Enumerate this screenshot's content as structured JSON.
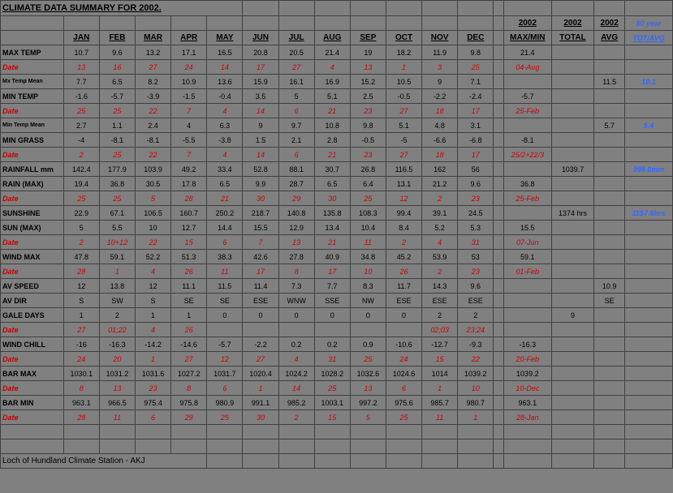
{
  "title": "CLIMATE DATA SUMMARY FOR 2002.",
  "columns": [
    "JAN",
    "FEB",
    "MAR",
    "APR",
    "MAY",
    "JUN",
    "JUL",
    "AUG",
    "SEP",
    "OCT",
    "NOV",
    "DEC"
  ],
  "summary_headers": {
    "maxmin": "2002 MAX/MIN",
    "total": "2002 TOTAL",
    "avg": "2002 AVG",
    "fifty": "50 year TOT/AVG"
  },
  "rows": [
    {
      "label": "MAX TEMP",
      "cls": "rowlabel",
      "vals": [
        "10.7",
        "9.6",
        "13.2",
        "17.1",
        "16.5",
        "20.8",
        "20.5",
        "21.4",
        "19",
        "18.2",
        "11.9",
        "9.8"
      ],
      "s1": "21.4",
      "s2": "",
      "s3": "",
      "s4": ""
    },
    {
      "label": "Date",
      "cls": "date-label",
      "vcls": "red",
      "vals": [
        "13",
        "16",
        "27",
        "24",
        "14",
        "17",
        "27",
        "4",
        "13",
        "1",
        "3",
        "25"
      ],
      "s1": "04-Aug",
      "s1cls": "red",
      "s2": "",
      "s3": "",
      "s4": ""
    },
    {
      "label": "Mx Temp Mean",
      "cls": "rowlabel-sm",
      "vals": [
        "7.7",
        "6.5",
        "8.2",
        "10.9",
        "13.6",
        "15.9",
        "16.1",
        "16.9",
        "15.2",
        "10.5",
        "9",
        "7.1"
      ],
      "s1": "",
      "s2": "",
      "s3": "11.5",
      "s4": "10.1",
      "s4cls": "blue"
    },
    {
      "label": "MIN TEMP",
      "cls": "rowlabel",
      "vals": [
        "-1.6",
        "-5.7",
        "-3.9",
        "-1.5",
        "-0.4",
        "3.5",
        "5",
        "5.1",
        "2.5",
        "-0.5",
        "-2.2",
        "-2.4"
      ],
      "s1": "-5.7",
      "s2": "",
      "s3": "",
      "s4": ""
    },
    {
      "label": "Date",
      "cls": "date-label",
      "vcls": "red",
      "vals": [
        "25",
        "25",
        "22",
        "7",
        "4",
        "14",
        "6",
        "21",
        "23",
        "27",
        "18",
        "17"
      ],
      "s1": "25-Feb",
      "s1cls": "red",
      "s2": "",
      "s3": "",
      "s4": ""
    },
    {
      "label": "Min Temp Mean",
      "cls": "rowlabel-sm",
      "vals": [
        "2.7",
        "1.1",
        "2.4",
        "4",
        "6.3",
        "9",
        "9.7",
        "10.8",
        "9.8",
        "5.1",
        "4.8",
        "3.1"
      ],
      "s1": "",
      "s2": "",
      "s3": "5.7",
      "s4": "5.4",
      "s4cls": "blue"
    },
    {
      "label": "MIN GRASS",
      "cls": "rowlabel",
      "vals": [
        "-4",
        "-8.1",
        "-8.1",
        "-5.5",
        "-3.8",
        "1.5",
        "2.1",
        "2.8",
        "-0.5",
        "-5",
        "-6.6",
        "-6.8"
      ],
      "s1": "-8.1",
      "s2": "",
      "s3": "",
      "s4": ""
    },
    {
      "label": "Date",
      "cls": "date-label",
      "vcls": "red",
      "vals": [
        "2",
        "25",
        "22",
        "7",
        "4",
        "14",
        "6",
        "21",
        "23",
        "27",
        "18",
        "17"
      ],
      "s1": "25/2+22/3",
      "s1cls": "red",
      "s2": "",
      "s3": "",
      "s4": ""
    },
    {
      "label": "RAINFALL mm",
      "cls": "rowlabel",
      "vals": [
        "142.4",
        "177.9",
        "103.9",
        "49.2",
        "33.4",
        "52.8",
        "88.1",
        "30.7",
        "26.8",
        "116.5",
        "162",
        "56"
      ],
      "s1": "",
      "s2": "1039.7",
      "s3": "",
      "s4": "998.0mm",
      "s4cls": "blue"
    },
    {
      "label": "RAIN (MAX)",
      "cls": "rowlabel",
      "vals": [
        "19.4",
        "36.8",
        "30.5",
        "17.8",
        "6.5",
        "9.9",
        "28.7",
        "6.5",
        "6.4",
        "13.1",
        "21.2",
        "9.6"
      ],
      "s1": "36.8",
      "s2": "",
      "s3": "",
      "s4": ""
    },
    {
      "label": "Date",
      "cls": "date-label",
      "vcls": "red",
      "vals": [
        "25",
        "25",
        "5",
        "28",
        "21",
        "30",
        "29",
        "30",
        "25",
        "12",
        "2",
        "23"
      ],
      "s1": "25-Feb",
      "s1cls": "red",
      "s2": "",
      "s3": "",
      "s4": ""
    },
    {
      "label": "SUNSHINE",
      "cls": "rowlabel",
      "vals": [
        "22.9",
        "67.1",
        "106.5",
        "160.7",
        "250.2",
        "218.7",
        "140.8",
        "135.8",
        "108.3",
        "99.4",
        "39.1",
        "24.5"
      ],
      "s1": "",
      "s2": "1374 hrs",
      "s3": "",
      "s4": "1157.8hrs",
      "s4cls": "blue"
    },
    {
      "label": "SUN (MAX)",
      "cls": "rowlabel",
      "vals": [
        "5",
        "5.5",
        "10",
        "12.7",
        "14.4",
        "15.5",
        "12.9",
        "13.4",
        "10.4",
        "8.4",
        "5.2",
        "5.3"
      ],
      "s1": "15.5",
      "s2": "",
      "s3": "",
      "s4": ""
    },
    {
      "label": "Date",
      "cls": "date-label",
      "vcls": "red",
      "vals": [
        "2",
        "10+12",
        "22",
        "15",
        "6",
        "7",
        "13",
        "21",
        "11",
        "2",
        "4",
        "31"
      ],
      "s1": "07-Jun",
      "s1cls": "red",
      "s2": "",
      "s3": "",
      "s4": ""
    },
    {
      "label": "WIND MAX",
      "cls": "rowlabel",
      "vals": [
        "47.8",
        "59.1",
        "52.2",
        "51.3",
        "38.3",
        "42.6",
        "27.8",
        "40.9",
        "34.8",
        "45.2",
        "53.9",
        "53"
      ],
      "s1": "59.1",
      "s2": "",
      "s3": "",
      "s4": ""
    },
    {
      "label": "Date",
      "cls": "date-label",
      "vcls": "red",
      "vals": [
        "28",
        "1",
        "4",
        "26",
        "11",
        "17",
        "8",
        "17",
        "10",
        "26",
        "2",
        "23"
      ],
      "s1": "01-Feb",
      "s1cls": "red",
      "s2": "",
      "s3": "",
      "s4": ""
    },
    {
      "label": "AV SPEED",
      "cls": "rowlabel",
      "vals": [
        "12",
        "13.8",
        "12",
        "11.1",
        "11.5",
        "11.4",
        "7.3",
        "7.7",
        "8.3",
        "11.7",
        "14.3",
        "9.6"
      ],
      "s1": "",
      "s2": "",
      "s3": "10.9",
      "s4": ""
    },
    {
      "label": "AV DIR",
      "cls": "rowlabel",
      "vals": [
        "S",
        "SW",
        "S",
        "SE",
        "SE",
        "ESE",
        "WNW",
        "SSE",
        "NW",
        "ESE",
        "ESE",
        "ESE"
      ],
      "s1": "",
      "s2": "",
      "s3": "SE",
      "s4": ""
    },
    {
      "label": "GALE DAYS",
      "cls": "rowlabel",
      "vals": [
        "1",
        "2",
        "1",
        "1",
        "0",
        "0",
        "0",
        "0",
        "0",
        "0",
        "2",
        "2"
      ],
      "s1": "",
      "s2": "9",
      "s3": "",
      "s4": ""
    },
    {
      "label": "Date",
      "cls": "date-label",
      "vcls": "red",
      "vals": [
        "27",
        "01;22",
        "4",
        "26",
        "",
        "",
        "",
        "",
        "",
        "",
        "02;03",
        "23;24"
      ],
      "s1": "",
      "s2": "",
      "s3": "",
      "s4": ""
    },
    {
      "label": "WIND CHILL",
      "cls": "rowlabel",
      "vals": [
        "-16",
        "-16.3",
        "-14.2",
        "-14.6",
        "-5.7",
        "-2.2",
        "0.2",
        "0.2",
        "0.9",
        "-10.6",
        "-12.7",
        "-9.3"
      ],
      "s1": "-16.3",
      "s2": "",
      "s3": "",
      "s4": ""
    },
    {
      "label": "Date",
      "cls": "date-label",
      "vcls": "red",
      "vals": [
        "24",
        "20",
        "1",
        "27",
        "12",
        "27",
        "4",
        "31",
        "25",
        "24",
        "15",
        "22"
      ],
      "s1": "20-Feb",
      "s1cls": "red",
      "s2": "",
      "s3": "",
      "s4": ""
    },
    {
      "label": "BAR MAX",
      "cls": "rowlabel",
      "vals": [
        "1030.1",
        "1031.2",
        "1031.6",
        "1027.2",
        "1031.7",
        "1020.4",
        "1024.2",
        "1028.2",
        "1032.6",
        "1024.6",
        "1014",
        "1039.2"
      ],
      "s1": "1039.2",
      "s2": "",
      "s3": "",
      "s4": ""
    },
    {
      "label": "Date",
      "cls": "date-label",
      "vcls": "red",
      "vals": [
        "8",
        "13",
        "23",
        "8",
        "6",
        "1",
        "14",
        "25",
        "13",
        "6",
        "1",
        "10"
      ],
      "s1": "10-Dec",
      "s1cls": "red",
      "s2": "",
      "s3": "",
      "s4": ""
    },
    {
      "label": "BAR MIN",
      "cls": "rowlabel",
      "vals": [
        "963.1",
        "966.5",
        "975.4",
        "975.8",
        "980.9",
        "991.1",
        "985.2",
        "1003.1",
        "997.2",
        "975.6",
        "985.7",
        "980.7"
      ],
      "s1": "963.1",
      "s2": "",
      "s3": "",
      "s4": ""
    },
    {
      "label": "Date",
      "cls": "date-label",
      "vcls": "red",
      "vals": [
        "28",
        "11",
        "6",
        "29",
        "25",
        "30",
        "2",
        "15",
        "5",
        "25",
        "11",
        "1"
      ],
      "s1": "28-Jan",
      "s1cls": "red",
      "s2": "",
      "s3": "",
      "s4": ""
    }
  ],
  "footer": "Loch of Hundland Climate Station - AKJ"
}
